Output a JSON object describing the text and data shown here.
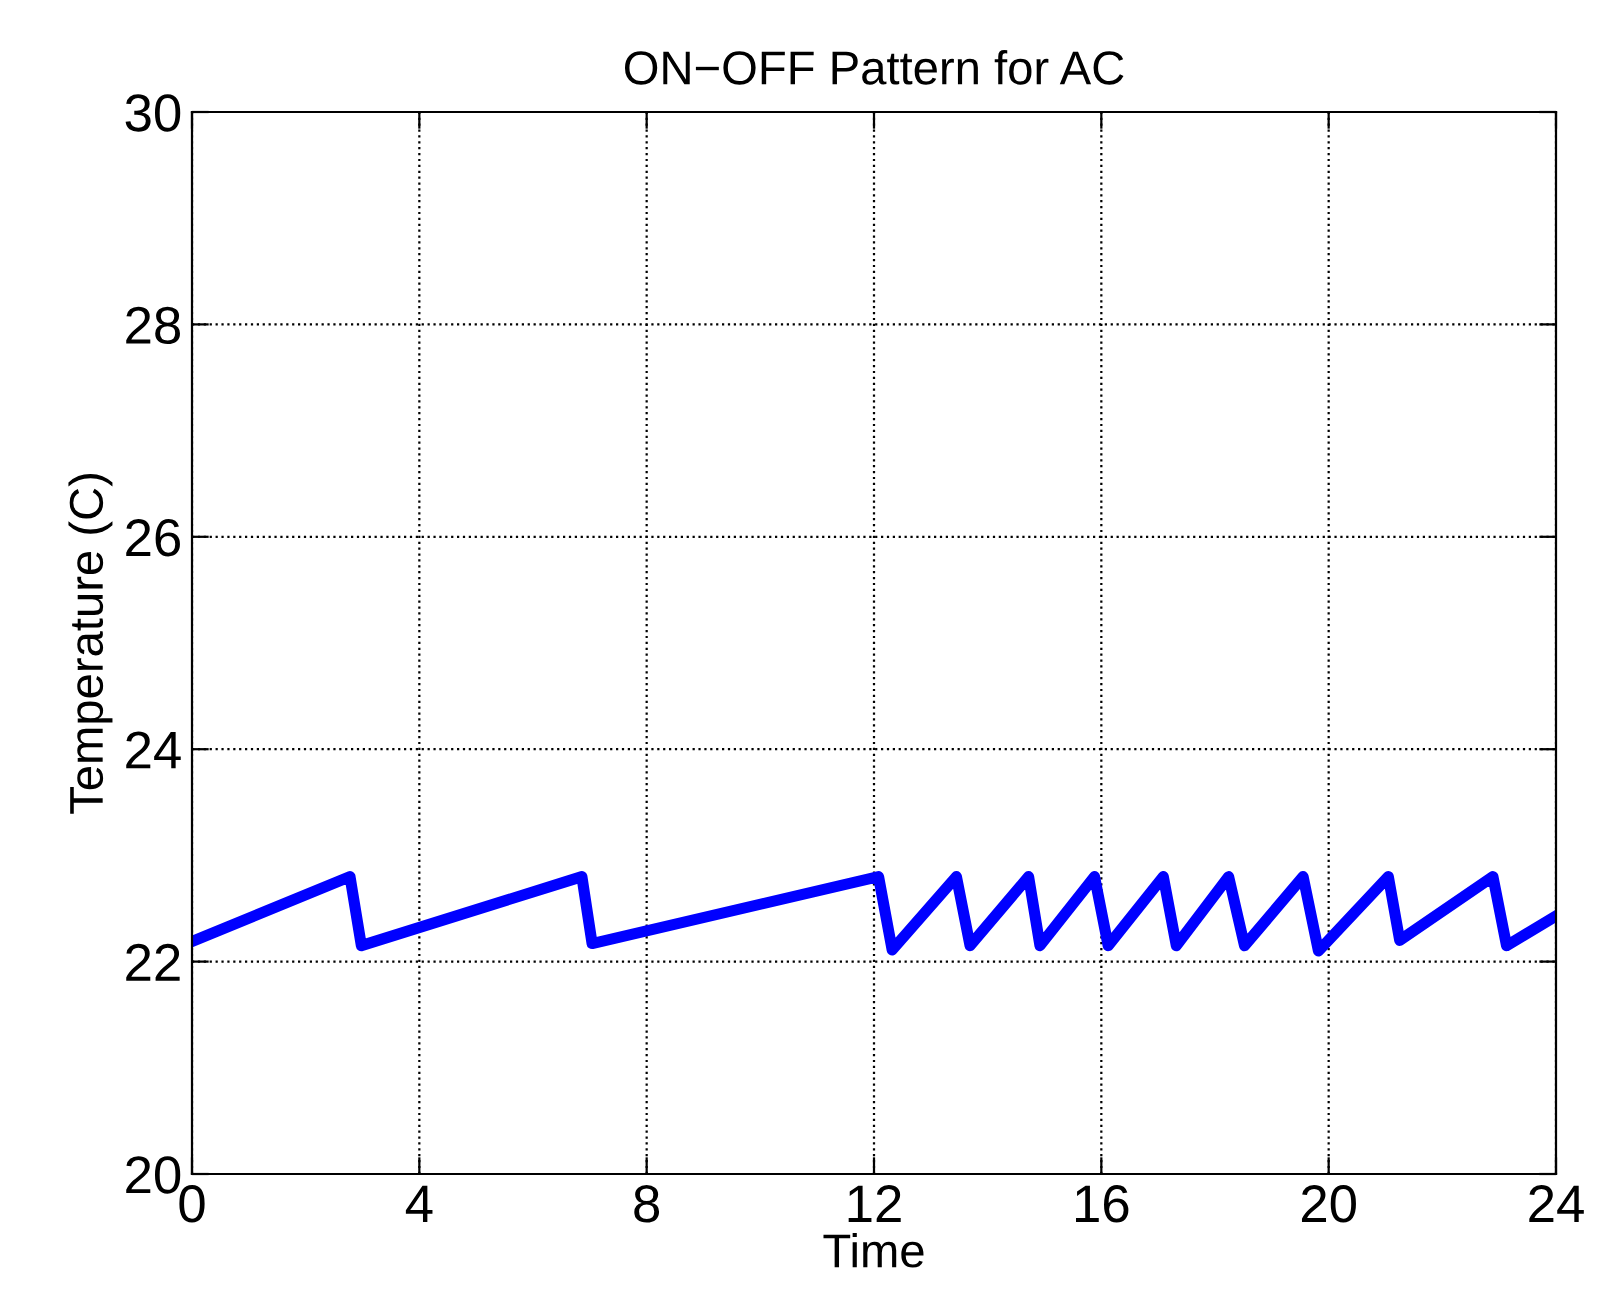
{
  "chart_data": {
    "type": "line",
    "title": "ON−OFF Pattern for AC",
    "xlabel": "Time",
    "ylabel": "Temperature (C)",
    "x": [
      0,
      2.78,
      2.98,
      6.86,
      7.04,
      12.08,
      12.32,
      13.45,
      13.69,
      14.72,
      14.92,
      15.88,
      16.12,
      17.09,
      17.32,
      18.24,
      18.52,
      19.55,
      19.82,
      21.05,
      21.25,
      22.89,
      23.13,
      24
    ],
    "series": [
      {
        "color": "#0000ff",
        "values": [
          22.19,
          22.8,
          22.15,
          22.8,
          22.17,
          22.8,
          22.11,
          22.8,
          22.15,
          22.8,
          22.15,
          22.8,
          22.15,
          22.8,
          22.15,
          22.8,
          22.15,
          22.8,
          22.1,
          22.8,
          22.2,
          22.8,
          22.15,
          22.43
        ]
      }
    ],
    "xlim": [
      0,
      24
    ],
    "xticks": [
      0,
      4,
      8,
      12,
      16,
      20,
      24
    ],
    "ylim": [
      20,
      30
    ],
    "yticks": [
      20,
      22,
      24,
      26,
      28,
      30
    ],
    "grid": true,
    "line_style": "solid",
    "marker": "none"
  }
}
